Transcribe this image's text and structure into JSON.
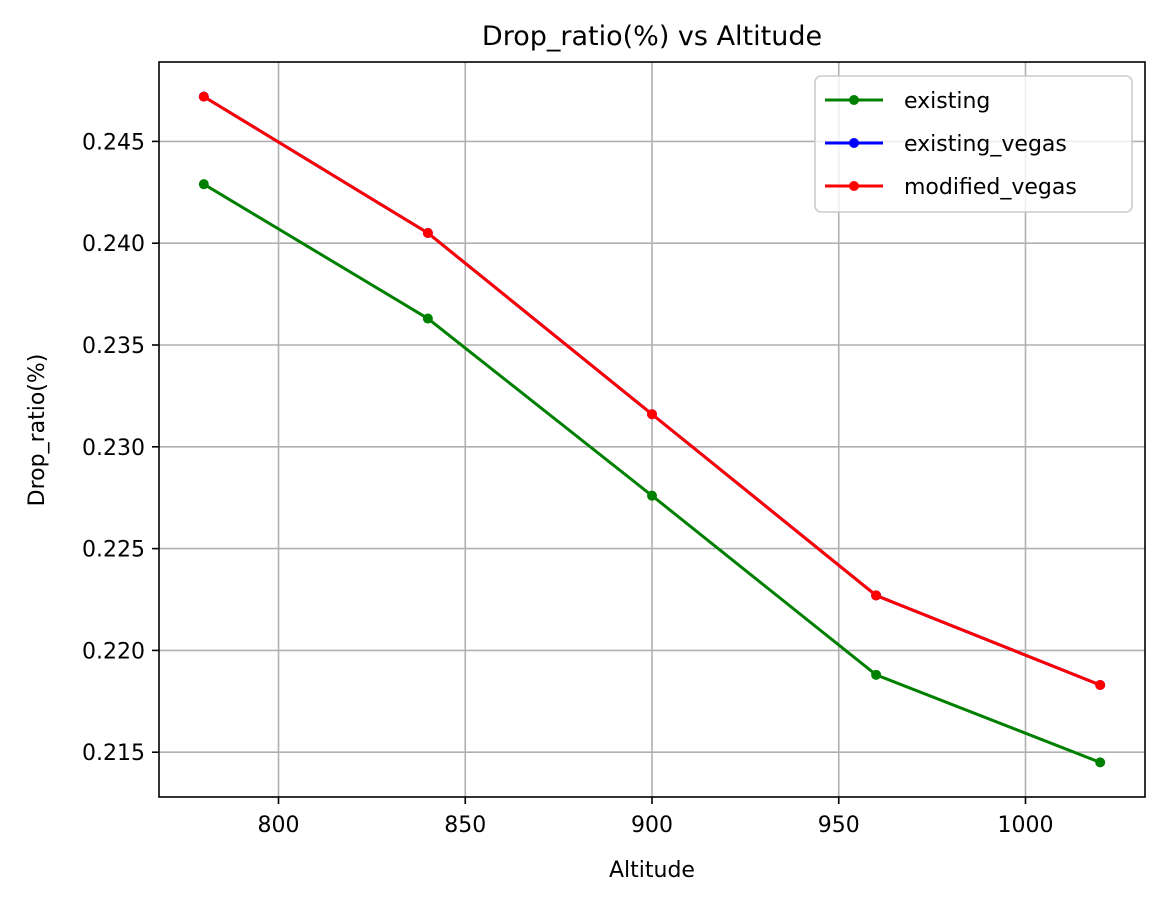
{
  "chart_data": {
    "type": "line",
    "title": "Drop_ratio(%) vs Altitude",
    "xlabel": "Altitude",
    "ylabel": "Drop_ratio(%)",
    "xlim": [
      768,
      1032
    ],
    "ylim": [
      0.2128,
      0.2489
    ],
    "grid": true,
    "legend_placement": "upper-right",
    "x_ticks": [
      800,
      850,
      900,
      950,
      1000
    ],
    "y_ticks": [
      0.215,
      0.22,
      0.225,
      0.23,
      0.235,
      0.24,
      0.245
    ],
    "x_tick_labels": [
      "800",
      "850",
      "900",
      "950",
      "1000"
    ],
    "y_tick_labels": [
      "0.215",
      "0.220",
      "0.225",
      "0.230",
      "0.235",
      "0.240",
      "0.245"
    ],
    "x": [
      780,
      840,
      900,
      960,
      1020
    ],
    "series": [
      {
        "name": "existing",
        "color": "#008000",
        "values": [
          0.2429,
          0.2363,
          0.2276,
          0.2188,
          0.2145
        ]
      },
      {
        "name": "existing_vegas",
        "color": "#0000ff",
        "values": [
          0.2472,
          0.2405,
          0.2316,
          0.2227,
          0.2183
        ]
      },
      {
        "name": "modified_vegas",
        "color": "#ff0000",
        "values": [
          0.2472,
          0.2405,
          0.2316,
          0.2227,
          0.2183
        ]
      }
    ]
  }
}
